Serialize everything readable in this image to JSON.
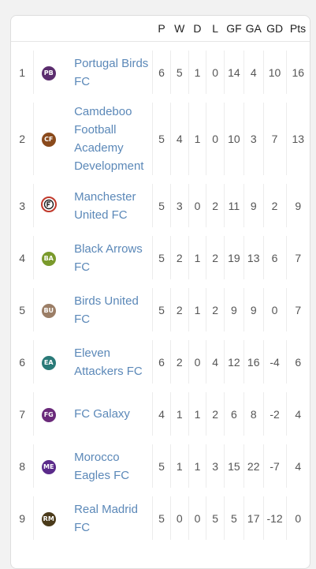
{
  "headers": [
    "P",
    "W",
    "D",
    "L",
    "GF",
    "GA",
    "GD",
    "Pts"
  ],
  "rows": [
    {
      "pos": "1",
      "badge": "PB",
      "color": "#5b2d6e",
      "name": "Portugal Birds FC",
      "stats": [
        "6",
        "5",
        "1",
        "0",
        "14",
        "4",
        "10",
        "16"
      ]
    },
    {
      "pos": "2",
      "badge": "CF",
      "color": "#8a4a1c",
      "name": "Camdeboo Football Academy Development",
      "stats": [
        "5",
        "4",
        "1",
        "0",
        "10",
        "3",
        "7",
        "13"
      ]
    },
    {
      "pos": "3",
      "badge": "",
      "color": "#ffffff",
      "name": "Manchester United FC",
      "stats": [
        "5",
        "3",
        "0",
        "2",
        "11",
        "9",
        "2",
        "9"
      ]
    },
    {
      "pos": "4",
      "badge": "BA",
      "color": "#7a9a2c",
      "name": "Black Arrows FC",
      "stats": [
        "5",
        "2",
        "1",
        "2",
        "19",
        "13",
        "6",
        "7"
      ]
    },
    {
      "pos": "5",
      "badge": "BU",
      "color": "#9b7e66",
      "name": "Birds United FC",
      "stats": [
        "5",
        "2",
        "1",
        "2",
        "9",
        "9",
        "0",
        "7"
      ]
    },
    {
      "pos": "6",
      "badge": "EA",
      "color": "#2a7a78",
      "name": "Eleven Attackers FC",
      "stats": [
        "6",
        "2",
        "0",
        "4",
        "12",
        "16",
        "-4",
        "6"
      ]
    },
    {
      "pos": "7",
      "badge": "FG",
      "color": "#6a2a7a",
      "name": "FC Galaxy",
      "stats": [
        "4",
        "1",
        "1",
        "2",
        "6",
        "8",
        "-2",
        "4"
      ]
    },
    {
      "pos": "8",
      "badge": "ME",
      "color": "#5a2a8a",
      "name": "Morocco Eagles FC",
      "stats": [
        "5",
        "1",
        "1",
        "3",
        "15",
        "22",
        "-7",
        "4"
      ]
    },
    {
      "pos": "9",
      "badge": "RM",
      "color": "#4a3a1a",
      "name": "Real Madrid FC",
      "stats": [
        "5",
        "0",
        "0",
        "5",
        "5",
        "17",
        "-12",
        "0"
      ]
    }
  ]
}
